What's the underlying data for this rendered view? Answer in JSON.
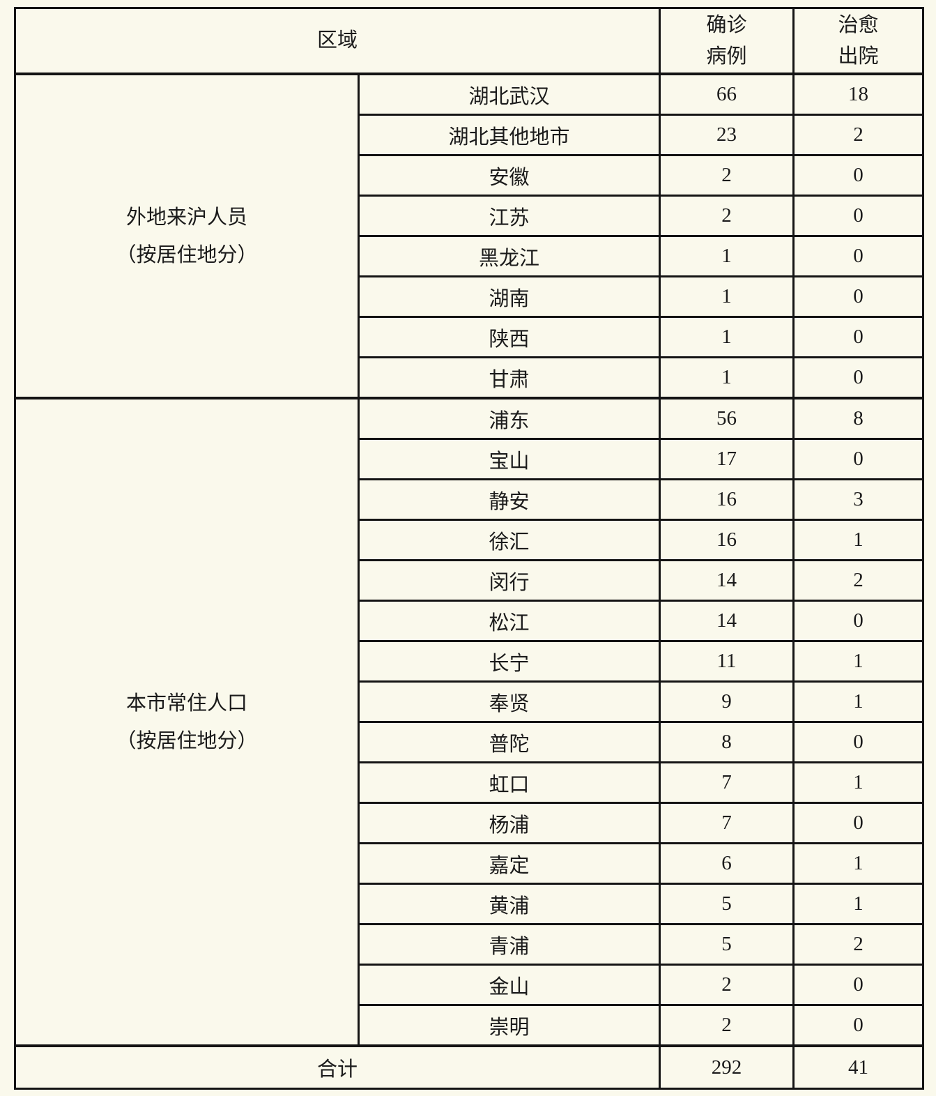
{
  "colors": {
    "background": "#FAF9EC",
    "border": "#141414",
    "text": "#1B1B1B"
  },
  "table": {
    "header": {
      "region_label": "区域",
      "confirmed_line1": "确诊",
      "confirmed_line2": "病例",
      "cured_line1": "治愈",
      "cured_line2": "出院"
    },
    "groups": [
      {
        "label_line1": "外地来沪人员",
        "label_line2": "（按居住地分）",
        "rows": [
          {
            "region": "湖北武汉",
            "confirmed": "66",
            "cured": "18"
          },
          {
            "region": "湖北其他地市",
            "confirmed": "23",
            "cured": "2"
          },
          {
            "region": "安徽",
            "confirmed": "2",
            "cured": "0"
          },
          {
            "region": "江苏",
            "confirmed": "2",
            "cured": "0"
          },
          {
            "region": "黑龙江",
            "confirmed": "1",
            "cured": "0"
          },
          {
            "region": "湖南",
            "confirmed": "1",
            "cured": "0"
          },
          {
            "region": "陕西",
            "confirmed": "1",
            "cured": "0"
          },
          {
            "region": "甘肃",
            "confirmed": "1",
            "cured": "0"
          }
        ]
      },
      {
        "label_line1": "本市常住人口",
        "label_line2": "（按居住地分）",
        "rows": [
          {
            "region": "浦东",
            "confirmed": "56",
            "cured": "8"
          },
          {
            "region": "宝山",
            "confirmed": "17",
            "cured": "0"
          },
          {
            "region": "静安",
            "confirmed": "16",
            "cured": "3"
          },
          {
            "region": "徐汇",
            "confirmed": "16",
            "cured": "1"
          },
          {
            "region": "闵行",
            "confirmed": "14",
            "cured": "2"
          },
          {
            "region": "松江",
            "confirmed": "14",
            "cured": "0"
          },
          {
            "region": "长宁",
            "confirmed": "11",
            "cured": "1"
          },
          {
            "region": "奉贤",
            "confirmed": "9",
            "cured": "1"
          },
          {
            "region": "普陀",
            "confirmed": "8",
            "cured": "0"
          },
          {
            "region": "虹口",
            "confirmed": "7",
            "cured": "1"
          },
          {
            "region": "杨浦",
            "confirmed": "7",
            "cured": "0"
          },
          {
            "region": "嘉定",
            "confirmed": "6",
            "cured": "1"
          },
          {
            "region": "黄浦",
            "confirmed": "5",
            "cured": "1"
          },
          {
            "region": "青浦",
            "confirmed": "5",
            "cured": "2"
          },
          {
            "region": "金山",
            "confirmed": "2",
            "cured": "0"
          },
          {
            "region": "崇明",
            "confirmed": "2",
            "cured": "0"
          }
        ]
      }
    ],
    "footer": {
      "label": "合计",
      "confirmed": "292",
      "cured": "41"
    }
  }
}
